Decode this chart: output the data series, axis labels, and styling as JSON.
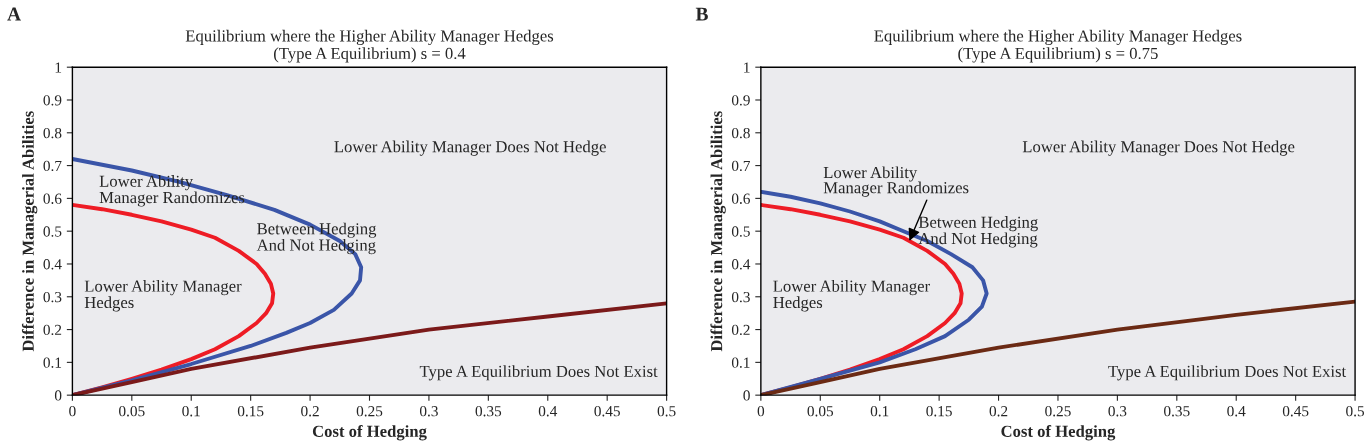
{
  "chart_data": [
    {
      "type": "line",
      "title": "Equilibrium where the Higher Ability Manager Hedges\n(Type A Equilibrium) s = 0.4",
      "xlabel": "Cost of Hedging",
      "ylabel": "Difference in Managerial Abilities",
      "xlim": [
        0,
        0.5
      ],
      "ylim": [
        0,
        1
      ],
      "xticks": [
        0,
        0.05,
        0.1,
        0.15,
        0.2,
        0.25,
        0.3,
        0.35,
        0.4,
        0.45,
        0.5
      ],
      "yticks": [
        0,
        0.1,
        0.2,
        0.3,
        0.4,
        0.5,
        0.6,
        0.7,
        0.8,
        0.9,
        1
      ],
      "series": [
        {
          "color": "#ee1c25",
          "x": [
            0,
            0.025,
            0.05,
            0.075,
            0.1,
            0.12,
            0.14,
            0.155,
            0.163,
            0.168,
            0.169,
            0.167,
            0.162,
            0.155,
            0.14,
            0.12,
            0.1,
            0.075,
            0.05,
            0.025,
            0
          ],
          "values": [
            0,
            0.024,
            0.05,
            0.078,
            0.11,
            0.14,
            0.18,
            0.22,
            0.25,
            0.28,
            0.31,
            0.34,
            0.37,
            0.4,
            0.44,
            0.48,
            0.505,
            0.53,
            0.55,
            0.567,
            0.58
          ]
        },
        {
          "color": "#3a55a8",
          "x": [
            0,
            0.05,
            0.1,
            0.15,
            0.18,
            0.2,
            0.22,
            0.235,
            0.242,
            0.243,
            0.238,
            0.225,
            0.2,
            0.17,
            0.13,
            0.09,
            0.05,
            0
          ],
          "values": [
            0,
            0.045,
            0.095,
            0.15,
            0.19,
            0.22,
            0.26,
            0.31,
            0.35,
            0.39,
            0.43,
            0.47,
            0.52,
            0.565,
            0.61,
            0.65,
            0.685,
            0.72
          ]
        },
        {
          "color": "#7b1a1a",
          "x": [
            0,
            0.05,
            0.1,
            0.2,
            0.3,
            0.4,
            0.5
          ],
          "values": [
            0,
            0.04,
            0.08,
            0.145,
            0.2,
            0.24,
            0.28
          ]
        }
      ],
      "annotations": [
        "A",
        "Lower Ability Manager Does Not Hedge",
        "Lower Ability\nManager Randomizes",
        "Between Hedging\nAnd Not Hedging",
        "Lower Ability Manager\nHedges",
        "Type A Equilibrium Does Not Exist"
      ]
    },
    {
      "type": "line",
      "title": "Equilibrium where the Higher Ability Manager Hedges\n(Type A Equilibrium) s = 0.75",
      "xlabel": "Cost of Hedging",
      "ylabel": "Difference in Managerial Abilities",
      "xlim": [
        0,
        0.5
      ],
      "ylim": [
        0,
        1
      ],
      "xticks": [
        0,
        0.05,
        0.1,
        0.15,
        0.2,
        0.25,
        0.3,
        0.35,
        0.4,
        0.45,
        0.5
      ],
      "yticks": [
        0,
        0.1,
        0.2,
        0.3,
        0.4,
        0.5,
        0.6,
        0.7,
        0.8,
        0.9,
        1
      ],
      "series": [
        {
          "color": "#ee1c25",
          "x": [
            0,
            0.025,
            0.05,
            0.075,
            0.1,
            0.12,
            0.14,
            0.155,
            0.163,
            0.168,
            0.169,
            0.167,
            0.162,
            0.155,
            0.14,
            0.12,
            0.1,
            0.075,
            0.05,
            0.025,
            0
          ],
          "values": [
            0,
            0.024,
            0.05,
            0.078,
            0.11,
            0.14,
            0.18,
            0.22,
            0.25,
            0.28,
            0.31,
            0.34,
            0.37,
            0.4,
            0.44,
            0.48,
            0.505,
            0.53,
            0.55,
            0.567,
            0.58
          ]
        },
        {
          "color": "#3a55a8",
          "x": [
            0,
            0.05,
            0.1,
            0.13,
            0.155,
            0.175,
            0.186,
            0.19,
            0.187,
            0.178,
            0.16,
            0.14,
            0.12,
            0.1,
            0.075,
            0.05,
            0.025,
            0
          ],
          "values": [
            0,
            0.05,
            0.1,
            0.14,
            0.18,
            0.23,
            0.27,
            0.31,
            0.35,
            0.39,
            0.43,
            0.47,
            0.5,
            0.53,
            0.56,
            0.585,
            0.605,
            0.62
          ]
        },
        {
          "color": "#6b2a14",
          "x": [
            0,
            0.05,
            0.1,
            0.2,
            0.3,
            0.4,
            0.5
          ],
          "values": [
            0,
            0.04,
            0.08,
            0.145,
            0.2,
            0.245,
            0.285
          ]
        }
      ],
      "annotations": [
        "B",
        "Lower Ability Manager Does Not Hedge",
        {
          "text": "Lower Ability\nManager Randomizes",
          "x": 0.125,
          "y": 0.47
        },
        "Between Hedging\nAnd Not Hedging",
        "Lower Ability Manager\nHedges",
        "Type A Equilibrium Does Not Exist"
      ]
    }
  ]
}
